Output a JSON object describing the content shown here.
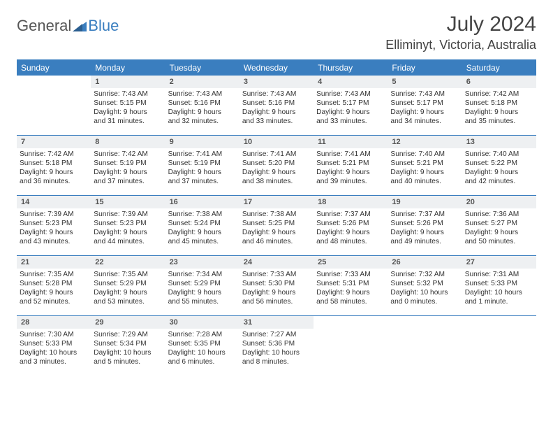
{
  "logo": {
    "text1": "General",
    "text2": "Blue"
  },
  "title": "July 2024",
  "location": "Elliminyt, Victoria, Australia",
  "colors": {
    "accent": "#3a7ebf",
    "text": "#333333",
    "daynum_bg": "#eef0f2",
    "background": "#ffffff"
  },
  "columns": [
    "Sunday",
    "Monday",
    "Tuesday",
    "Wednesday",
    "Thursday",
    "Friday",
    "Saturday"
  ],
  "weeks": [
    [
      null,
      {
        "n": "1",
        "sr": "Sunrise: 7:43 AM",
        "ss": "Sunset: 5:15 PM",
        "d1": "Daylight: 9 hours",
        "d2": "and 31 minutes."
      },
      {
        "n": "2",
        "sr": "Sunrise: 7:43 AM",
        "ss": "Sunset: 5:16 PM",
        "d1": "Daylight: 9 hours",
        "d2": "and 32 minutes."
      },
      {
        "n": "3",
        "sr": "Sunrise: 7:43 AM",
        "ss": "Sunset: 5:16 PM",
        "d1": "Daylight: 9 hours",
        "d2": "and 33 minutes."
      },
      {
        "n": "4",
        "sr": "Sunrise: 7:43 AM",
        "ss": "Sunset: 5:17 PM",
        "d1": "Daylight: 9 hours",
        "d2": "and 33 minutes."
      },
      {
        "n": "5",
        "sr": "Sunrise: 7:43 AM",
        "ss": "Sunset: 5:17 PM",
        "d1": "Daylight: 9 hours",
        "d2": "and 34 minutes."
      },
      {
        "n": "6",
        "sr": "Sunrise: 7:42 AM",
        "ss": "Sunset: 5:18 PM",
        "d1": "Daylight: 9 hours",
        "d2": "and 35 minutes."
      }
    ],
    [
      {
        "n": "7",
        "sr": "Sunrise: 7:42 AM",
        "ss": "Sunset: 5:18 PM",
        "d1": "Daylight: 9 hours",
        "d2": "and 36 minutes."
      },
      {
        "n": "8",
        "sr": "Sunrise: 7:42 AM",
        "ss": "Sunset: 5:19 PM",
        "d1": "Daylight: 9 hours",
        "d2": "and 37 minutes."
      },
      {
        "n": "9",
        "sr": "Sunrise: 7:41 AM",
        "ss": "Sunset: 5:19 PM",
        "d1": "Daylight: 9 hours",
        "d2": "and 37 minutes."
      },
      {
        "n": "10",
        "sr": "Sunrise: 7:41 AM",
        "ss": "Sunset: 5:20 PM",
        "d1": "Daylight: 9 hours",
        "d2": "and 38 minutes."
      },
      {
        "n": "11",
        "sr": "Sunrise: 7:41 AM",
        "ss": "Sunset: 5:21 PM",
        "d1": "Daylight: 9 hours",
        "d2": "and 39 minutes."
      },
      {
        "n": "12",
        "sr": "Sunrise: 7:40 AM",
        "ss": "Sunset: 5:21 PM",
        "d1": "Daylight: 9 hours",
        "d2": "and 40 minutes."
      },
      {
        "n": "13",
        "sr": "Sunrise: 7:40 AM",
        "ss": "Sunset: 5:22 PM",
        "d1": "Daylight: 9 hours",
        "d2": "and 42 minutes."
      }
    ],
    [
      {
        "n": "14",
        "sr": "Sunrise: 7:39 AM",
        "ss": "Sunset: 5:23 PM",
        "d1": "Daylight: 9 hours",
        "d2": "and 43 minutes."
      },
      {
        "n": "15",
        "sr": "Sunrise: 7:39 AM",
        "ss": "Sunset: 5:23 PM",
        "d1": "Daylight: 9 hours",
        "d2": "and 44 minutes."
      },
      {
        "n": "16",
        "sr": "Sunrise: 7:38 AM",
        "ss": "Sunset: 5:24 PM",
        "d1": "Daylight: 9 hours",
        "d2": "and 45 minutes."
      },
      {
        "n": "17",
        "sr": "Sunrise: 7:38 AM",
        "ss": "Sunset: 5:25 PM",
        "d1": "Daylight: 9 hours",
        "d2": "and 46 minutes."
      },
      {
        "n": "18",
        "sr": "Sunrise: 7:37 AM",
        "ss": "Sunset: 5:26 PM",
        "d1": "Daylight: 9 hours",
        "d2": "and 48 minutes."
      },
      {
        "n": "19",
        "sr": "Sunrise: 7:37 AM",
        "ss": "Sunset: 5:26 PM",
        "d1": "Daylight: 9 hours",
        "d2": "and 49 minutes."
      },
      {
        "n": "20",
        "sr": "Sunrise: 7:36 AM",
        "ss": "Sunset: 5:27 PM",
        "d1": "Daylight: 9 hours",
        "d2": "and 50 minutes."
      }
    ],
    [
      {
        "n": "21",
        "sr": "Sunrise: 7:35 AM",
        "ss": "Sunset: 5:28 PM",
        "d1": "Daylight: 9 hours",
        "d2": "and 52 minutes."
      },
      {
        "n": "22",
        "sr": "Sunrise: 7:35 AM",
        "ss": "Sunset: 5:29 PM",
        "d1": "Daylight: 9 hours",
        "d2": "and 53 minutes."
      },
      {
        "n": "23",
        "sr": "Sunrise: 7:34 AM",
        "ss": "Sunset: 5:29 PM",
        "d1": "Daylight: 9 hours",
        "d2": "and 55 minutes."
      },
      {
        "n": "24",
        "sr": "Sunrise: 7:33 AM",
        "ss": "Sunset: 5:30 PM",
        "d1": "Daylight: 9 hours",
        "d2": "and 56 minutes."
      },
      {
        "n": "25",
        "sr": "Sunrise: 7:33 AM",
        "ss": "Sunset: 5:31 PM",
        "d1": "Daylight: 9 hours",
        "d2": "and 58 minutes."
      },
      {
        "n": "26",
        "sr": "Sunrise: 7:32 AM",
        "ss": "Sunset: 5:32 PM",
        "d1": "Daylight: 10 hours",
        "d2": "and 0 minutes."
      },
      {
        "n": "27",
        "sr": "Sunrise: 7:31 AM",
        "ss": "Sunset: 5:33 PM",
        "d1": "Daylight: 10 hours",
        "d2": "and 1 minute."
      }
    ],
    [
      {
        "n": "28",
        "sr": "Sunrise: 7:30 AM",
        "ss": "Sunset: 5:33 PM",
        "d1": "Daylight: 10 hours",
        "d2": "and 3 minutes."
      },
      {
        "n": "29",
        "sr": "Sunrise: 7:29 AM",
        "ss": "Sunset: 5:34 PM",
        "d1": "Daylight: 10 hours",
        "d2": "and 5 minutes."
      },
      {
        "n": "30",
        "sr": "Sunrise: 7:28 AM",
        "ss": "Sunset: 5:35 PM",
        "d1": "Daylight: 10 hours",
        "d2": "and 6 minutes."
      },
      {
        "n": "31",
        "sr": "Sunrise: 7:27 AM",
        "ss": "Sunset: 5:36 PM",
        "d1": "Daylight: 10 hours",
        "d2": "and 8 minutes."
      },
      null,
      null,
      null
    ]
  ]
}
